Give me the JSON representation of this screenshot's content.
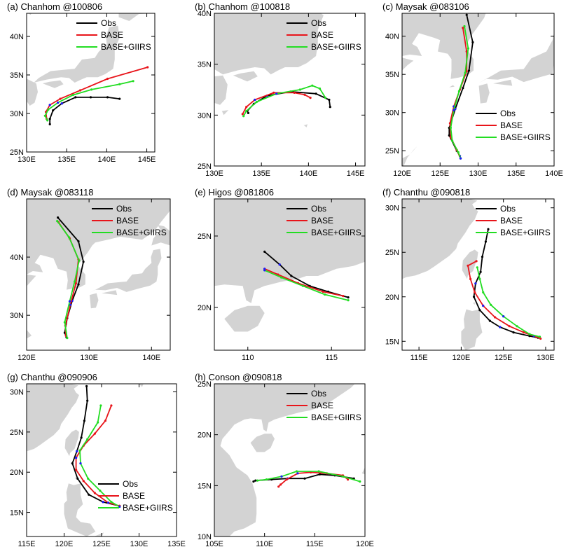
{
  "colors": {
    "obs": "#000000",
    "base": "#e8141a",
    "giirs": "#22dd22",
    "land": "#d3d3d3",
    "marker": "#1a1aff"
  },
  "chart_data": [
    {
      "type": "line",
      "title": "(a) Chanhom @100806",
      "xlim": [
        130,
        146
      ],
      "ylim": [
        25,
        43
      ],
      "xticks": [
        130,
        135,
        140,
        145
      ],
      "yticks": [
        25,
        30,
        35,
        40
      ],
      "xtick_labels": [
        "130E",
        "135E",
        "140E",
        "145E"
      ],
      "ytick_labels": [
        "25N",
        "30N",
        "35N",
        "40N"
      ],
      "legend": "top-right",
      "series": [
        {
          "name": "Obs",
          "points": [
            [
              141.6,
              31.9
            ],
            [
              140.1,
              32.1
            ],
            [
              138.0,
              32.1
            ],
            [
              136.1,
              32.1
            ],
            [
              134.4,
              31.3
            ],
            [
              133.3,
              30.4
            ],
            [
              132.9,
              29.3
            ],
            [
              132.9,
              28.6
            ]
          ]
        },
        {
          "name": "BASE",
          "points": [
            [
              145.1,
              36.0
            ],
            [
              140.1,
              34.5
            ],
            [
              136.7,
              33.0
            ],
            [
              134.2,
              31.9
            ],
            [
              132.9,
              31.1
            ],
            [
              132.4,
              30.2
            ],
            [
              132.5,
              29.3
            ]
          ]
        },
        {
          "name": "BASE+GIIRS",
          "points": [
            [
              143.3,
              34.2
            ],
            [
              141.6,
              33.8
            ],
            [
              138.1,
              33.1
            ],
            [
              135.8,
              32.4
            ],
            [
              133.9,
              31.4
            ],
            [
              132.7,
              30.5
            ],
            [
              132.3,
              29.7
            ],
            [
              132.6,
              29.1
            ]
          ]
        }
      ]
    },
    {
      "type": "line",
      "title": "(b) Chanhom @100818",
      "xlim": [
        130,
        146
      ],
      "ylim": [
        25,
        40
      ],
      "xticks": [
        130,
        135,
        140,
        145
      ],
      "yticks": [
        25,
        30,
        35,
        40
      ],
      "xtick_labels": [
        "130E",
        "135E",
        "140E",
        "145E"
      ],
      "ytick_labels": [
        "25N",
        "30N",
        "35N",
        "40N"
      ],
      "legend": "top-right",
      "series": [
        {
          "name": "Obs",
          "points": [
            [
              142.3,
              30.8
            ],
            [
              142.2,
              31.5
            ],
            [
              140.8,
              32.1
            ],
            [
              138.1,
              32.3
            ],
            [
              135.6,
              31.9
            ],
            [
              134.2,
              31.1
            ],
            [
              133.5,
              30.4
            ],
            [
              133.6,
              30.2
            ]
          ]
        },
        {
          "name": "BASE",
          "points": [
            [
              140.2,
              31.7
            ],
            [
              139.6,
              32.0
            ],
            [
              138.5,
              32.2
            ],
            [
              136.3,
              32.2
            ],
            [
              134.3,
              31.5
            ],
            [
              133.4,
              30.8
            ],
            [
              133.0,
              30.1
            ]
          ]
        },
        {
          "name": "BASE+GIIRS",
          "points": [
            [
              141.8,
              31.7
            ],
            [
              141.2,
              32.6
            ],
            [
              140.4,
              32.9
            ],
            [
              139.1,
              32.5
            ],
            [
              136.6,
              32.1
            ],
            [
              134.5,
              31.3
            ],
            [
              133.4,
              30.4
            ],
            [
              133.1,
              29.9
            ]
          ]
        }
      ]
    },
    {
      "type": "line",
      "title": "(c) Maysak @083106",
      "xlim": [
        120,
        140
      ],
      "ylim": [
        23,
        43
      ],
      "xticks": [
        120,
        125,
        130,
        135,
        140
      ],
      "yticks": [
        25,
        30,
        35,
        40
      ],
      "xtick_labels": [
        "120E",
        "125E",
        "130E",
        "135E",
        "140E"
      ],
      "ytick_labels": [
        "25N",
        "30N",
        "35N",
        "40N"
      ],
      "legend": "bottom-right",
      "series": [
        {
          "name": "Obs",
          "points": [
            [
              128.5,
              42.8
            ],
            [
              129.3,
              39.2
            ],
            [
              128.8,
              35.5
            ],
            [
              128.0,
              33.2
            ],
            [
              127.0,
              30.5
            ],
            [
              126.2,
              28.0
            ],
            [
              126.2,
              27.0
            ],
            [
              127.2,
              25.0
            ],
            [
              127.6,
              24.3
            ]
          ]
        },
        {
          "name": "BASE",
          "points": [
            [
              128.0,
              41.1
            ],
            [
              128.5,
              38.0
            ],
            [
              128.5,
              35.4
            ],
            [
              127.6,
              33.0
            ],
            [
              126.8,
              30.8
            ],
            [
              126.3,
              28.6
            ],
            [
              126.4,
              26.8
            ],
            [
              127.2,
              25.1
            ],
            [
              127.7,
              24.0
            ]
          ]
        },
        {
          "name": "BASE+GIIRS",
          "points": [
            [
              128.2,
              41.3
            ],
            [
              128.7,
              38.4
            ],
            [
              128.3,
              35.2
            ],
            [
              127.5,
              32.8
            ],
            [
              126.8,
              30.3
            ],
            [
              126.4,
              28.0
            ],
            [
              126.6,
              26.3
            ],
            [
              127.4,
              24.8
            ],
            [
              127.7,
              24.0
            ]
          ]
        }
      ]
    },
    {
      "type": "line",
      "title": "(d) Maysak @083118",
      "xlim": [
        120,
        143
      ],
      "ylim": [
        24,
        50
      ],
      "xticks": [
        120,
        130,
        140
      ],
      "yticks": [
        30,
        40
      ],
      "xtick_labels": [
        "120E",
        "130E",
        "140E"
      ],
      "ytick_labels": [
        "30N",
        "40N"
      ],
      "legend": "top-right",
      "series": [
        {
          "name": "Obs",
          "points": [
            [
              125.0,
              46.8
            ],
            [
              128.3,
              42.7
            ],
            [
              129.1,
              39.2
            ],
            [
              128.3,
              35.3
            ],
            [
              127.3,
              32.5
            ],
            [
              126.5,
              29.5
            ],
            [
              126.1,
              27.0
            ],
            [
              126.4,
              26.2
            ]
          ]
        },
        {
          "name": "BASE",
          "points": [
            [
              125.1,
              46.0
            ],
            [
              126.9,
              43.2
            ],
            [
              128.3,
              39.6
            ],
            [
              127.9,
              35.5
            ],
            [
              127.0,
              31.8
            ],
            [
              126.2,
              28.2
            ],
            [
              126.3,
              26.5
            ]
          ]
        },
        {
          "name": "BASE+GIIRS",
          "points": [
            [
              124.9,
              46.2
            ],
            [
              126.8,
              43.4
            ],
            [
              128.4,
              39.4
            ],
            [
              127.7,
              35.8
            ],
            [
              126.9,
              32.4
            ],
            [
              126.1,
              28.8
            ],
            [
              126.5,
              26.1
            ]
          ]
        }
      ]
    },
    {
      "type": "line",
      "title": "(e) Higos @081806",
      "xlim": [
        108,
        117
      ],
      "ylim": [
        17,
        27.6
      ],
      "xticks": [
        110,
        115
      ],
      "yticks": [
        20,
        25
      ],
      "xtick_labels": [
        "110",
        "115"
      ],
      "ytick_labels": [
        "20N",
        "25N"
      ],
      "legend": "top-right",
      "series": [
        {
          "name": "Obs",
          "points": [
            [
              116.0,
              20.7
            ],
            [
              114.8,
              21.1
            ],
            [
              113.7,
              21.5
            ],
            [
              112.6,
              22.2
            ],
            [
              111.9,
              23.0
            ],
            [
              111.0,
              23.9
            ]
          ]
        },
        {
          "name": "BASE",
          "points": [
            [
              115.7,
              20.8
            ],
            [
              114.5,
              21.1
            ],
            [
              113.0,
              21.7
            ],
            [
              111.8,
              22.3
            ],
            [
              111.0,
              22.7
            ]
          ]
        },
        {
          "name": "BASE+GIIRS",
          "points": [
            [
              116.0,
              20.5
            ],
            [
              114.6,
              20.9
            ],
            [
              113.3,
              21.5
            ],
            [
              112.0,
              22.1
            ],
            [
              111.0,
              22.6
            ]
          ]
        }
      ]
    },
    {
      "type": "line",
      "title": "(f) Chanthu @090818",
      "xlim": [
        113,
        131
      ],
      "ylim": [
        14,
        31
      ],
      "xticks": [
        115,
        120,
        125,
        130
      ],
      "yticks": [
        15,
        20,
        25,
        30
      ],
      "xtick_labels": [
        "115E",
        "120E",
        "125E",
        "130E"
      ],
      "ytick_labels": [
        "15N",
        "20N",
        "25N",
        "30N"
      ],
      "legend": "top-right",
      "series": [
        {
          "name": "Obs",
          "points": [
            [
              123.2,
              27.6
            ],
            [
              122.9,
              26.2
            ],
            [
              122.5,
              24.5
            ],
            [
              122.3,
              22.8
            ],
            [
              121.7,
              21.5
            ],
            [
              121.5,
              20.0
            ],
            [
              122.2,
              18.5
            ],
            [
              123.4,
              17.3
            ],
            [
              124.6,
              16.6
            ],
            [
              126.2,
              16.0
            ],
            [
              128.1,
              15.6
            ],
            [
              129.1,
              15.4
            ]
          ]
        },
        {
          "name": "BASE",
          "points": [
            [
              121.8,
              24.0
            ],
            [
              120.8,
              23.5
            ],
            [
              121.1,
              22.0
            ],
            [
              121.6,
              20.5
            ],
            [
              122.6,
              19.0
            ],
            [
              124.0,
              17.7
            ],
            [
              125.7,
              16.7
            ],
            [
              127.4,
              16.0
            ],
            [
              128.6,
              15.6
            ],
            [
              129.4,
              15.3
            ]
          ]
        },
        {
          "name": "BASE+GIIRS",
          "points": [
            [
              121.9,
              23.3
            ],
            [
              122.2,
              22.0
            ],
            [
              122.6,
              20.5
            ],
            [
              123.5,
              19.1
            ],
            [
              125.0,
              17.8
            ],
            [
              126.6,
              16.7
            ],
            [
              128.1,
              15.8
            ],
            [
              129.3,
              15.5
            ]
          ]
        }
      ]
    },
    {
      "type": "line",
      "title": "(g) Chanthu @090906",
      "xlim": [
        115,
        135
      ],
      "ylim": [
        12,
        31
      ],
      "xticks": [
        115,
        120,
        125,
        130,
        135
      ],
      "yticks": [
        15,
        20,
        25,
        30
      ],
      "xtick_labels": [
        "115E",
        "120E",
        "125E",
        "130E",
        "135E"
      ],
      "ytick_labels": [
        "15N",
        "20N",
        "25N",
        "30N"
      ],
      "legend": "bottom-right",
      "series": [
        {
          "name": "Obs",
          "points": [
            [
              123.0,
              30.7
            ],
            [
              123.1,
              28.9
            ],
            [
              122.7,
              26.4
            ],
            [
              122.3,
              24.3
            ],
            [
              121.7,
              22.6
            ],
            [
              121.1,
              21.1
            ],
            [
              121.8,
              19.2
            ],
            [
              123.3,
              17.2
            ],
            [
              125.2,
              16.3
            ],
            [
              127.4,
              15.8
            ]
          ]
        },
        {
          "name": "BASE",
          "points": [
            [
              126.3,
              28.3
            ],
            [
              125.5,
              26.4
            ],
            [
              124.1,
              24.8
            ],
            [
              122.6,
              23.3
            ],
            [
              121.6,
              21.8
            ],
            [
              121.6,
              20.3
            ],
            [
              122.6,
              18.9
            ],
            [
              124.1,
              17.4
            ],
            [
              125.9,
              16.2
            ],
            [
              127.4,
              15.8
            ]
          ]
        },
        {
          "name": "BASE+GIIRS",
          "points": [
            [
              124.9,
              28.3
            ],
            [
              124.5,
              26.2
            ],
            [
              123.1,
              24.1
            ],
            [
              122.1,
              22.7
            ],
            [
              122.2,
              21.1
            ],
            [
              123.2,
              19.2
            ],
            [
              124.8,
              17.7
            ],
            [
              126.3,
              16.3
            ],
            [
              127.4,
              15.7
            ]
          ]
        }
      ]
    },
    {
      "type": "line",
      "title": "(h) Conson @090818",
      "xlim": [
        105,
        120
      ],
      "ylim": [
        10,
        25
      ],
      "xticks": [
        105,
        110,
        115,
        120
      ],
      "yticks": [
        10,
        15,
        20,
        25
      ],
      "xtick_labels": [
        "105E",
        "110E",
        "115E",
        "120E"
      ],
      "ytick_labels": [
        "10N",
        "15N",
        "20N",
        "25N"
      ],
      "legend": "top-right",
      "series": [
        {
          "name": "Obs",
          "points": [
            [
              118.9,
              15.7
            ],
            [
              117.0,
              16.0
            ],
            [
              115.5,
              16.1
            ],
            [
              114.0,
              15.7
            ],
            [
              112.3,
              15.7
            ],
            [
              110.7,
              15.6
            ],
            [
              109.1,
              15.5
            ],
            [
              108.9,
              15.4
            ]
          ]
        },
        {
          "name": "BASE",
          "points": [
            [
              118.3,
              15.6
            ],
            [
              117.8,
              16.0
            ],
            [
              116.2,
              16.2
            ],
            [
              114.6,
              16.3
            ],
            [
              113.3,
              16.2
            ],
            [
              112.2,
              15.6
            ],
            [
              111.6,
              15.1
            ],
            [
              111.4,
              14.9
            ]
          ]
        },
        {
          "name": "BASE+GIIRS",
          "points": [
            [
              119.5,
              15.4
            ],
            [
              117.8,
              15.9
            ],
            [
              115.4,
              16.4
            ],
            [
              113.2,
              16.4
            ],
            [
              111.7,
              15.9
            ],
            [
              110.2,
              15.6
            ],
            [
              109.3,
              15.5
            ]
          ]
        }
      ]
    }
  ]
}
